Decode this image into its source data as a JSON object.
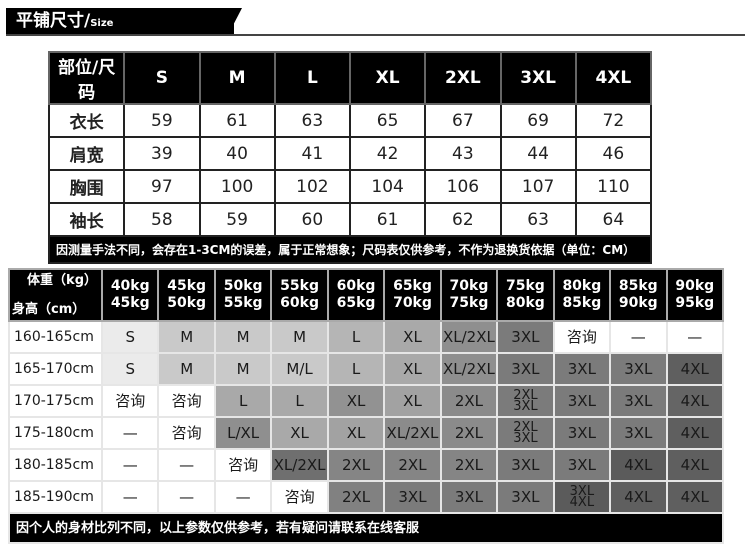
{
  "header": {
    "title": "平铺尺寸/",
    "subtitle": "Size"
  },
  "measure_table": {
    "corner": "部位/尺码",
    "sizes": [
      "S",
      "M",
      "L",
      "XL",
      "2XL",
      "3XL",
      "4XL"
    ],
    "rows": [
      {
        "label": "衣长",
        "values": [
          "59",
          "61",
          "63",
          "65",
          "67",
          "69",
          "72"
        ]
      },
      {
        "label": "肩宽",
        "values": [
          "39",
          "40",
          "41",
          "42",
          "43",
          "44",
          "46"
        ]
      },
      {
        "label": "胸围",
        "values": [
          "97",
          "100",
          "102",
          "104",
          "106",
          "107",
          "110"
        ]
      },
      {
        "label": "袖长",
        "values": [
          "58",
          "59",
          "60",
          "61",
          "62",
          "63",
          "64"
        ]
      }
    ],
    "note": "因测量手法不同，会存在1-3CM的误差，属于正常想象；尺码表仅供参考，不作为退换货依据（单位：CM）"
  },
  "recommend_table": {
    "weight_label": "体重（kg）",
    "height_label": "身高（cm）",
    "weights": [
      "40kg\n45kg",
      "45kg\n50kg",
      "50kg\n55kg",
      "55kg\n60kg",
      "60kg\n65kg",
      "65kg\n70kg",
      "70kg\n75kg",
      "75kg\n80kg",
      "80kg\n85kg",
      "85kg\n90kg",
      "90kg\n95kg"
    ],
    "rows": [
      {
        "label": "160-165cm",
        "cells": [
          [
            "S",
            "#ebebeb"
          ],
          [
            "M",
            "#c9c9c9"
          ],
          [
            "M",
            "#c9c9c9"
          ],
          [
            "M",
            "#c9c9c9"
          ],
          [
            "L",
            "#b5b5b5"
          ],
          [
            "XL",
            "#a9a9a9"
          ],
          [
            "XL/2XL",
            "#8f8f8f"
          ],
          [
            "3XL",
            "#7b7b7b"
          ],
          [
            "咨询",
            "#ffffff"
          ],
          [
            "—",
            "#ffffff"
          ],
          [
            "—",
            "#ffffff"
          ]
        ]
      },
      {
        "label": "165-170cm",
        "cells": [
          [
            "S",
            "#ebebeb"
          ],
          [
            "M",
            "#c9c9c9"
          ],
          [
            "M",
            "#c9c9c9"
          ],
          [
            "M/L",
            "#c9c9c9"
          ],
          [
            "L",
            "#b5b5b5"
          ],
          [
            "XL",
            "#a9a9a9"
          ],
          [
            "XL/2XL",
            "#8f8f8f"
          ],
          [
            "3XL",
            "#7b7b7b"
          ],
          [
            "3XL",
            "#7b7b7b"
          ],
          [
            "3XL",
            "#7b7b7b"
          ],
          [
            "4XL",
            "#5f5f5f"
          ]
        ]
      },
      {
        "label": "170-175cm",
        "cells": [
          [
            "咨询",
            "#ffffff"
          ],
          [
            "咨询",
            "#ffffff"
          ],
          [
            "L",
            "#a9a9a9"
          ],
          [
            "L",
            "#a9a9a9"
          ],
          [
            "XL",
            "#929292"
          ],
          [
            "XL",
            "#a2a2a2"
          ],
          [
            "2XL",
            "#8b8b8b"
          ],
          [
            "2XL\n3XL",
            "#7b7b7b"
          ],
          [
            "3XL",
            "#7b7b7b"
          ],
          [
            "3XL",
            "#7b7b7b"
          ],
          [
            "4XL",
            "#656565"
          ]
        ]
      },
      {
        "label": "175-180cm",
        "cells": [
          [
            "—",
            "#ffffff"
          ],
          [
            "咨询",
            "#ffffff"
          ],
          [
            "L/XL",
            "#8f8f8f"
          ],
          [
            "XL",
            "#a9a9a9"
          ],
          [
            "XL",
            "#a2a2a2"
          ],
          [
            "XL/2XL",
            "#8b8b8b"
          ],
          [
            "2XL",
            "#8b8b8b"
          ],
          [
            "2XL\n3XL",
            "#7b7b7b"
          ],
          [
            "3XL",
            "#7b7b7b"
          ],
          [
            "3XL",
            "#7b7b7b"
          ],
          [
            "4XL",
            "#5f5f5f"
          ]
        ]
      },
      {
        "label": "180-185cm",
        "cells": [
          [
            "—",
            "#ffffff"
          ],
          [
            "—",
            "#ffffff"
          ],
          [
            "咨询",
            "#ffffff"
          ],
          [
            "XL/2XL",
            "#6f6f6f"
          ],
          [
            "2XL",
            "#858585"
          ],
          [
            "2XL",
            "#858585"
          ],
          [
            "2XL",
            "#858585"
          ],
          [
            "3XL",
            "#7b7b7b"
          ],
          [
            "3XL",
            "#7b7b7b"
          ],
          [
            "4XL",
            "#5b5b5b"
          ],
          [
            "4XL",
            "#5f5f5f"
          ]
        ]
      },
      {
        "label": "185-190cm",
        "cells": [
          [
            "—",
            "#ffffff"
          ],
          [
            "—",
            "#ffffff"
          ],
          [
            "—",
            "#ffffff"
          ],
          [
            "咨询",
            "#ffffff"
          ],
          [
            "2XL",
            "#818181"
          ],
          [
            "3XL",
            "#7b7b7b"
          ],
          [
            "3XL",
            "#7b7b7b"
          ],
          [
            "3XL",
            "#7b7b7b"
          ],
          [
            "3XL\n4XL",
            "#5b5b5b"
          ],
          [
            "4XL",
            "#5f5f5f"
          ],
          [
            "4XL",
            "#5f5f5f"
          ]
        ]
      }
    ],
    "note": "因个人的身材比列不同，以上参数仅供参考，若有疑问请联系在线客服"
  }
}
